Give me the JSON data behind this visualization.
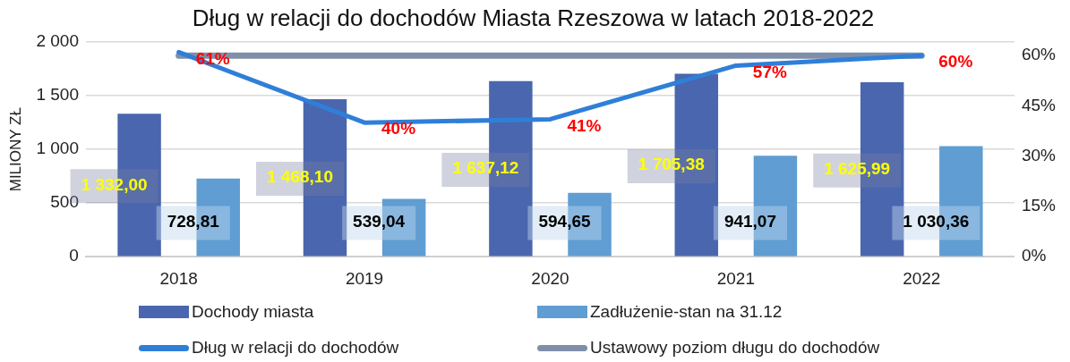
{
  "chart_data": {
    "type": "bar",
    "title": "Dług w relacji do dochodów Miasta Rzeszowa w latach 2018-2022",
    "ylabel": "MILIONY ZŁ",
    "categories": [
      "2018",
      "2019",
      "2020",
      "2021",
      "2022"
    ],
    "series": [
      {
        "name": "Dochody miasta",
        "color": "#4a66ae",
        "values": [
          1332.0,
          1468.1,
          1637.12,
          1705.38,
          1625.99
        ],
        "value_labels": [
          "1 332,00",
          "1 468,10",
          "1 637,12",
          "1 705,38",
          "1 625,99"
        ]
      },
      {
        "name": "Zadłużenie-stan na 31.12",
        "color": "#5f9dd3",
        "values": [
          728.81,
          539.04,
          594.65,
          941.07,
          1030.36
        ],
        "value_labels": [
          "728,81",
          "539,04",
          "594,65",
          "941,07",
          "1 030,36"
        ]
      },
      {
        "name": "Dług w relacji do dochodów",
        "type": "line",
        "axis": "y2",
        "color": "#2f7fd8",
        "values": [
          61,
          40,
          41,
          57,
          60
        ],
        "value_labels": [
          "61%",
          "40%",
          "41%",
          "57%",
          "60%"
        ]
      },
      {
        "name": "Ustawowy poziom długu do dochodów",
        "type": "line",
        "axis": "y2",
        "color": "#7f8fa9",
        "values": [
          60,
          60,
          60,
          60,
          60
        ]
      }
    ],
    "ylim": [
      0,
      2000
    ],
    "yticks": [
      {
        "value": 0,
        "label": "0"
      },
      {
        "value": 500,
        "label": "500"
      },
      {
        "value": 1000,
        "label": "1 000"
      },
      {
        "value": 1500,
        "label": "1 500"
      },
      {
        "value": 2000,
        "label": "2 000"
      }
    ],
    "y2lim": [
      0,
      64
    ],
    "y2ticks": [
      {
        "value": 0,
        "label": "0%"
      },
      {
        "value": 15,
        "label": "15%"
      },
      {
        "value": 30,
        "label": "30%"
      },
      {
        "value": 45,
        "label": "45%"
      },
      {
        "value": 60,
        "label": "60%"
      }
    ],
    "grid": "y",
    "legend": "bottom",
    "marker": "none",
    "line_style": "solid"
  }
}
